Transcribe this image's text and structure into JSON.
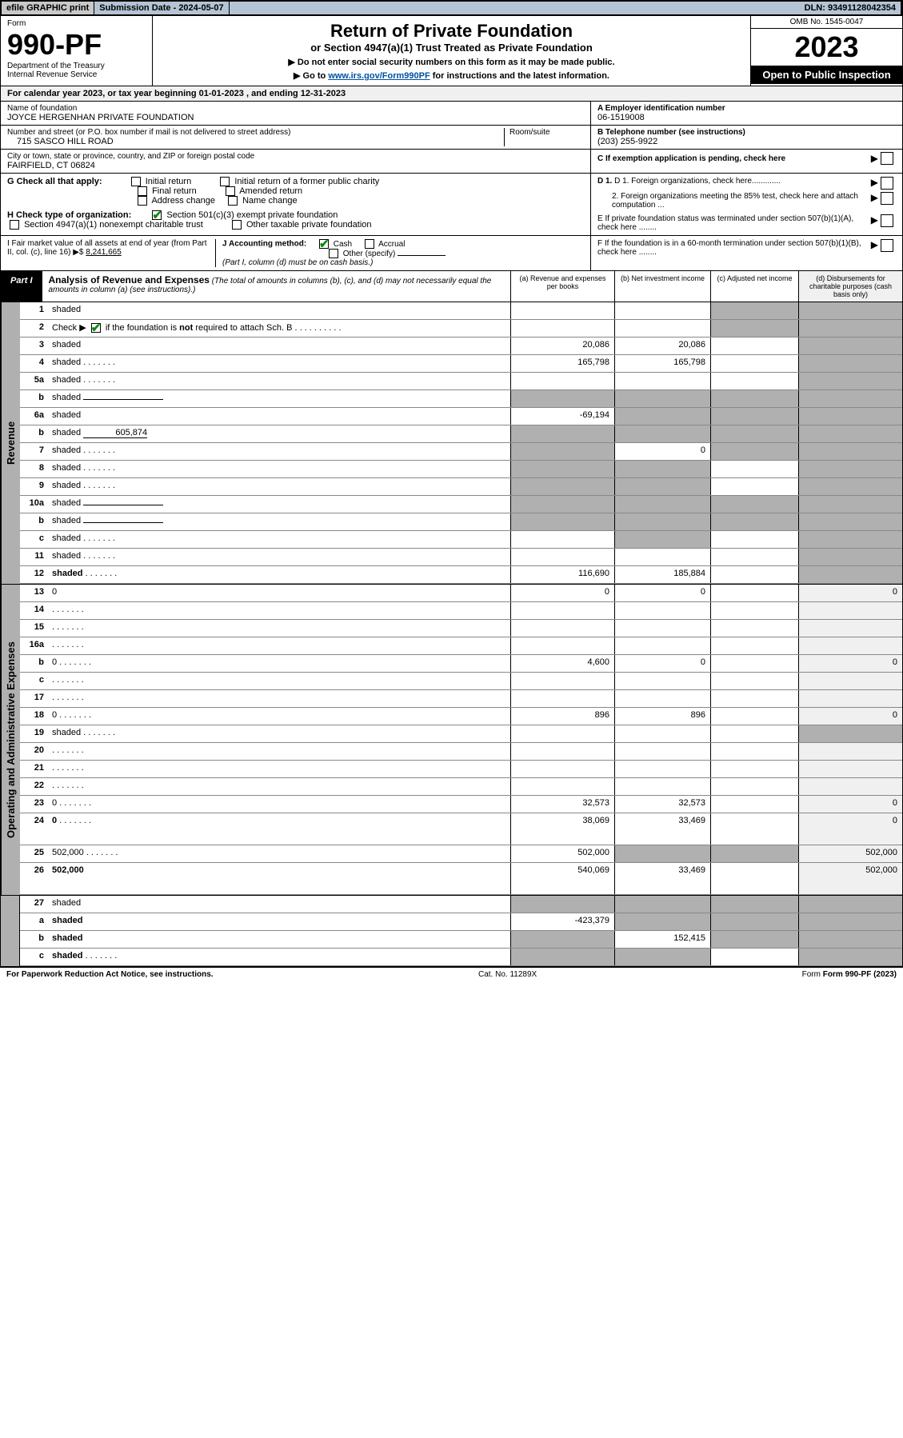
{
  "top": {
    "efile": "efile GRAPHIC print",
    "sub_date_label": "Submission Date - 2024-05-07",
    "dln": "DLN: 93491128042354"
  },
  "header": {
    "form_label": "Form",
    "form_number": "990-PF",
    "dept1": "Department of the Treasury",
    "dept2": "Internal Revenue Service",
    "title": "Return of Private Foundation",
    "subtitle": "or Section 4947(a)(1) Trust Treated as Private Foundation",
    "instr1": "▶ Do not enter social security numbers on this form as it may be made public.",
    "instr2_pre": "▶ Go to ",
    "instr2_link": "www.irs.gov/Form990PF",
    "instr2_post": " for instructions and the latest information.",
    "omb": "OMB No. 1545-0047",
    "year": "2023",
    "open_public": "Open to Public Inspection"
  },
  "cal_year": "For calendar year 2023, or tax year beginning 01-01-2023                          , and ending 12-31-2023",
  "info": {
    "name_label": "Name of foundation",
    "name_value": "JOYCE HERGENHAN PRIVATE FOUNDATION",
    "addr_label": "Number and street (or P.O. box number if mail is not delivered to street address)",
    "addr_value": "715 SASCO HILL ROAD",
    "room_label": "Room/suite",
    "city_label": "City or town, state or province, country, and ZIP or foreign postal code",
    "city_value": "FAIRFIELD, CT  06824",
    "ein_label": "A Employer identification number",
    "ein_value": "06-1519008",
    "phone_label": "B Telephone number (see instructions)",
    "phone_value": "(203) 255-9922",
    "c_label": "C If exemption application is pending, check here"
  },
  "checks_g": {
    "label": "G Check all that apply:",
    "initial": "Initial return",
    "initial_former": "Initial return of a former public charity",
    "final": "Final return",
    "amended": "Amended return",
    "addr_change": "Address change",
    "name_change": "Name change"
  },
  "checks_h": {
    "label": "H Check type of organization:",
    "s501c3": "Section 501(c)(3) exempt private foundation",
    "s4947": "Section 4947(a)(1) nonexempt charitable trust",
    "other_taxable": "Other taxable private foundation"
  },
  "section_d": {
    "d1": "D 1. Foreign organizations, check here.............",
    "d2": "2. Foreign organizations meeting the 85% test, check here and attach computation ...",
    "e": "E  If private foundation status was terminated under section 507(b)(1)(A), check here ........",
    "f": "F  If the foundation is in a 60-month termination under section 507(b)(1)(B), check here ........"
  },
  "section_i": {
    "label": "I Fair market value of all assets at end of year (from Part II, col. (c), line 16) ▶$",
    "value": "8,241,665"
  },
  "section_j": {
    "label": "J Accounting method:",
    "cash": "Cash",
    "accrual": "Accrual",
    "other": "Other (specify)",
    "note": "(Part I, column (d) must be on cash basis.)"
  },
  "part1": {
    "label": "Part I",
    "title": "Analysis of Revenue and Expenses",
    "note": "(The total of amounts in columns (b), (c), and (d) may not necessarily equal the amounts in column (a) (see instructions).)",
    "col_a": "(a)   Revenue and expenses per books",
    "col_b": "(b)   Net investment income",
    "col_c": "(c)   Adjusted net income",
    "col_d": "(d)   Disbursements for charitable purposes (cash basis only)"
  },
  "side_labels": {
    "revenue": "Revenue",
    "expenses": "Operating and Administrative Expenses"
  },
  "rows": [
    {
      "n": "1",
      "d": "shaded",
      "a": "",
      "b": "",
      "c": "shaded"
    },
    {
      "n": "2",
      "d": "shaded",
      "dots": false,
      "a": "",
      "b": "",
      "c": "shaded",
      "checkbox": true
    },
    {
      "n": "3",
      "d": "shaded",
      "a": "20,086",
      "b": "20,086",
      "c": ""
    },
    {
      "n": "4",
      "d": "shaded",
      "dots": true,
      "a": "165,798",
      "b": "165,798",
      "c": ""
    },
    {
      "n": "5a",
      "d": "shaded",
      "dots": true,
      "a": "",
      "b": "",
      "c": ""
    },
    {
      "n": "b",
      "d": "shaded",
      "underline": true,
      "a": "shaded",
      "b": "shaded",
      "c": "shaded"
    },
    {
      "n": "6a",
      "d": "shaded",
      "a": "-69,194",
      "b": "shaded",
      "c": "shaded"
    },
    {
      "n": "b",
      "d": "shaded",
      "underline_val": "605,874",
      "a": "shaded",
      "b": "shaded",
      "c": "shaded"
    },
    {
      "n": "7",
      "d": "shaded",
      "dots": true,
      "a": "shaded",
      "b": "0",
      "c": "shaded"
    },
    {
      "n": "8",
      "d": "shaded",
      "dots": true,
      "a": "shaded",
      "b": "shaded",
      "c": ""
    },
    {
      "n": "9",
      "d": "shaded",
      "dots": true,
      "a": "shaded",
      "b": "shaded",
      "c": ""
    },
    {
      "n": "10a",
      "d": "shaded",
      "underline": true,
      "a": "shaded",
      "b": "shaded",
      "c": "shaded"
    },
    {
      "n": "b",
      "d": "shaded",
      "dots": true,
      "underline": true,
      "a": "shaded",
      "b": "shaded",
      "c": "shaded"
    },
    {
      "n": "c",
      "d": "shaded",
      "dots": true,
      "a": "",
      "b": "shaded",
      "c": ""
    },
    {
      "n": "11",
      "d": "shaded",
      "dots": true,
      "a": "",
      "b": "",
      "c": ""
    },
    {
      "n": "12",
      "d": "shaded",
      "dots": true,
      "bold": true,
      "a": "116,690",
      "b": "185,884",
      "c": ""
    }
  ],
  "exp_rows": [
    {
      "n": "13",
      "d": "0",
      "a": "0",
      "b": "0",
      "c": ""
    },
    {
      "n": "14",
      "d": "",
      "dots": true,
      "a": "",
      "b": "",
      "c": ""
    },
    {
      "n": "15",
      "d": "",
      "dots": true,
      "a": "",
      "b": "",
      "c": ""
    },
    {
      "n": "16a",
      "d": "",
      "dots": true,
      "a": "",
      "b": "",
      "c": ""
    },
    {
      "n": "b",
      "d": "0",
      "dots": true,
      "a": "4,600",
      "b": "0",
      "c": ""
    },
    {
      "n": "c",
      "d": "",
      "dots": true,
      "a": "",
      "b": "",
      "c": ""
    },
    {
      "n": "17",
      "d": "",
      "dots": true,
      "a": "",
      "b": "",
      "c": ""
    },
    {
      "n": "18",
      "d": "0",
      "dots": true,
      "a": "896",
      "b": "896",
      "c": ""
    },
    {
      "n": "19",
      "d": "shaded",
      "dots": true,
      "a": "",
      "b": "",
      "c": ""
    },
    {
      "n": "20",
      "d": "",
      "dots": true,
      "a": "",
      "b": "",
      "c": ""
    },
    {
      "n": "21",
      "d": "",
      "dots": true,
      "a": "",
      "b": "",
      "c": ""
    },
    {
      "n": "22",
      "d": "",
      "dots": true,
      "a": "",
      "b": "",
      "c": ""
    },
    {
      "n": "23",
      "d": "0",
      "dots": true,
      "a": "32,573",
      "b": "32,573",
      "c": ""
    },
    {
      "n": "24",
      "d": "0",
      "dots": true,
      "bold": true,
      "a": "38,069",
      "b": "33,469",
      "c": "",
      "tall": true
    },
    {
      "n": "25",
      "d": "502,000",
      "dots": true,
      "a": "502,000",
      "b": "shaded",
      "c": "shaded"
    },
    {
      "n": "26",
      "d": "502,000",
      "bold": true,
      "a": "540,069",
      "b": "33,469",
      "c": "",
      "tall": true
    }
  ],
  "final_rows": [
    {
      "n": "27",
      "d": "shaded",
      "a": "shaded",
      "b": "shaded",
      "c": "shaded"
    },
    {
      "n": "a",
      "d": "shaded",
      "bold": true,
      "a": "-423,379",
      "b": "shaded",
      "c": "shaded"
    },
    {
      "n": "b",
      "d": "shaded",
      "bold": true,
      "a": "shaded",
      "b": "152,415",
      "c": "shaded"
    },
    {
      "n": "c",
      "d": "shaded",
      "dots": true,
      "bold": true,
      "a": "shaded",
      "b": "shaded",
      "c": ""
    }
  ],
  "footer": {
    "left": "For Paperwork Reduction Act Notice, see instructions.",
    "mid": "Cat. No. 11289X",
    "right": "Form 990-PF (2023)"
  }
}
